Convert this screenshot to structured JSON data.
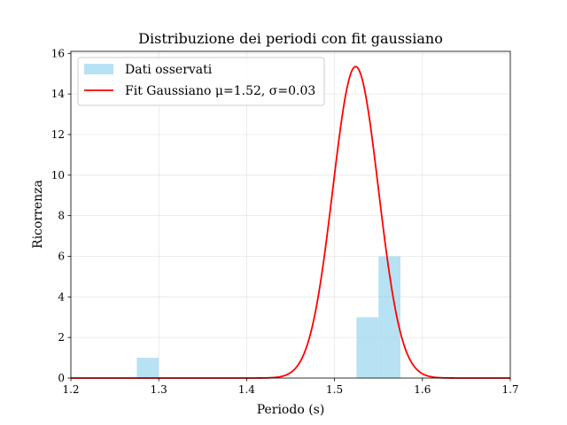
{
  "chart_data": {
    "type": "bar",
    "title": "Distribuzione dei periodi con fit gaussiano",
    "xlabel": "Periodo (s)",
    "ylabel": "Ricorrenza",
    "xlim": [
      1.2,
      1.7
    ],
    "ylim": [
      0,
      16.1
    ],
    "xticks": [
      "1.2",
      "1.3",
      "1.4",
      "1.5",
      "1.6",
      "1.7"
    ],
    "yticks": [
      "0",
      "2",
      "4",
      "6",
      "8",
      "10",
      "12",
      "14",
      "16"
    ],
    "grid": true,
    "legend_position": "top-left",
    "histogram": {
      "name": "Dati osservati",
      "color": "#87ceeb",
      "bins": [
        {
          "x0": 1.275,
          "x1": 1.3,
          "count": 1
        },
        {
          "x0": 1.525,
          "x1": 1.55,
          "count": 3
        },
        {
          "x0": 1.55,
          "x1": 1.575,
          "count": 6
        }
      ]
    },
    "fit": {
      "name": "Fit Gaussiano μ=1.52, σ=0.03",
      "color": "#ff0000",
      "mu": 1.524,
      "sigma": 0.026,
      "peak": 15.35
    }
  }
}
